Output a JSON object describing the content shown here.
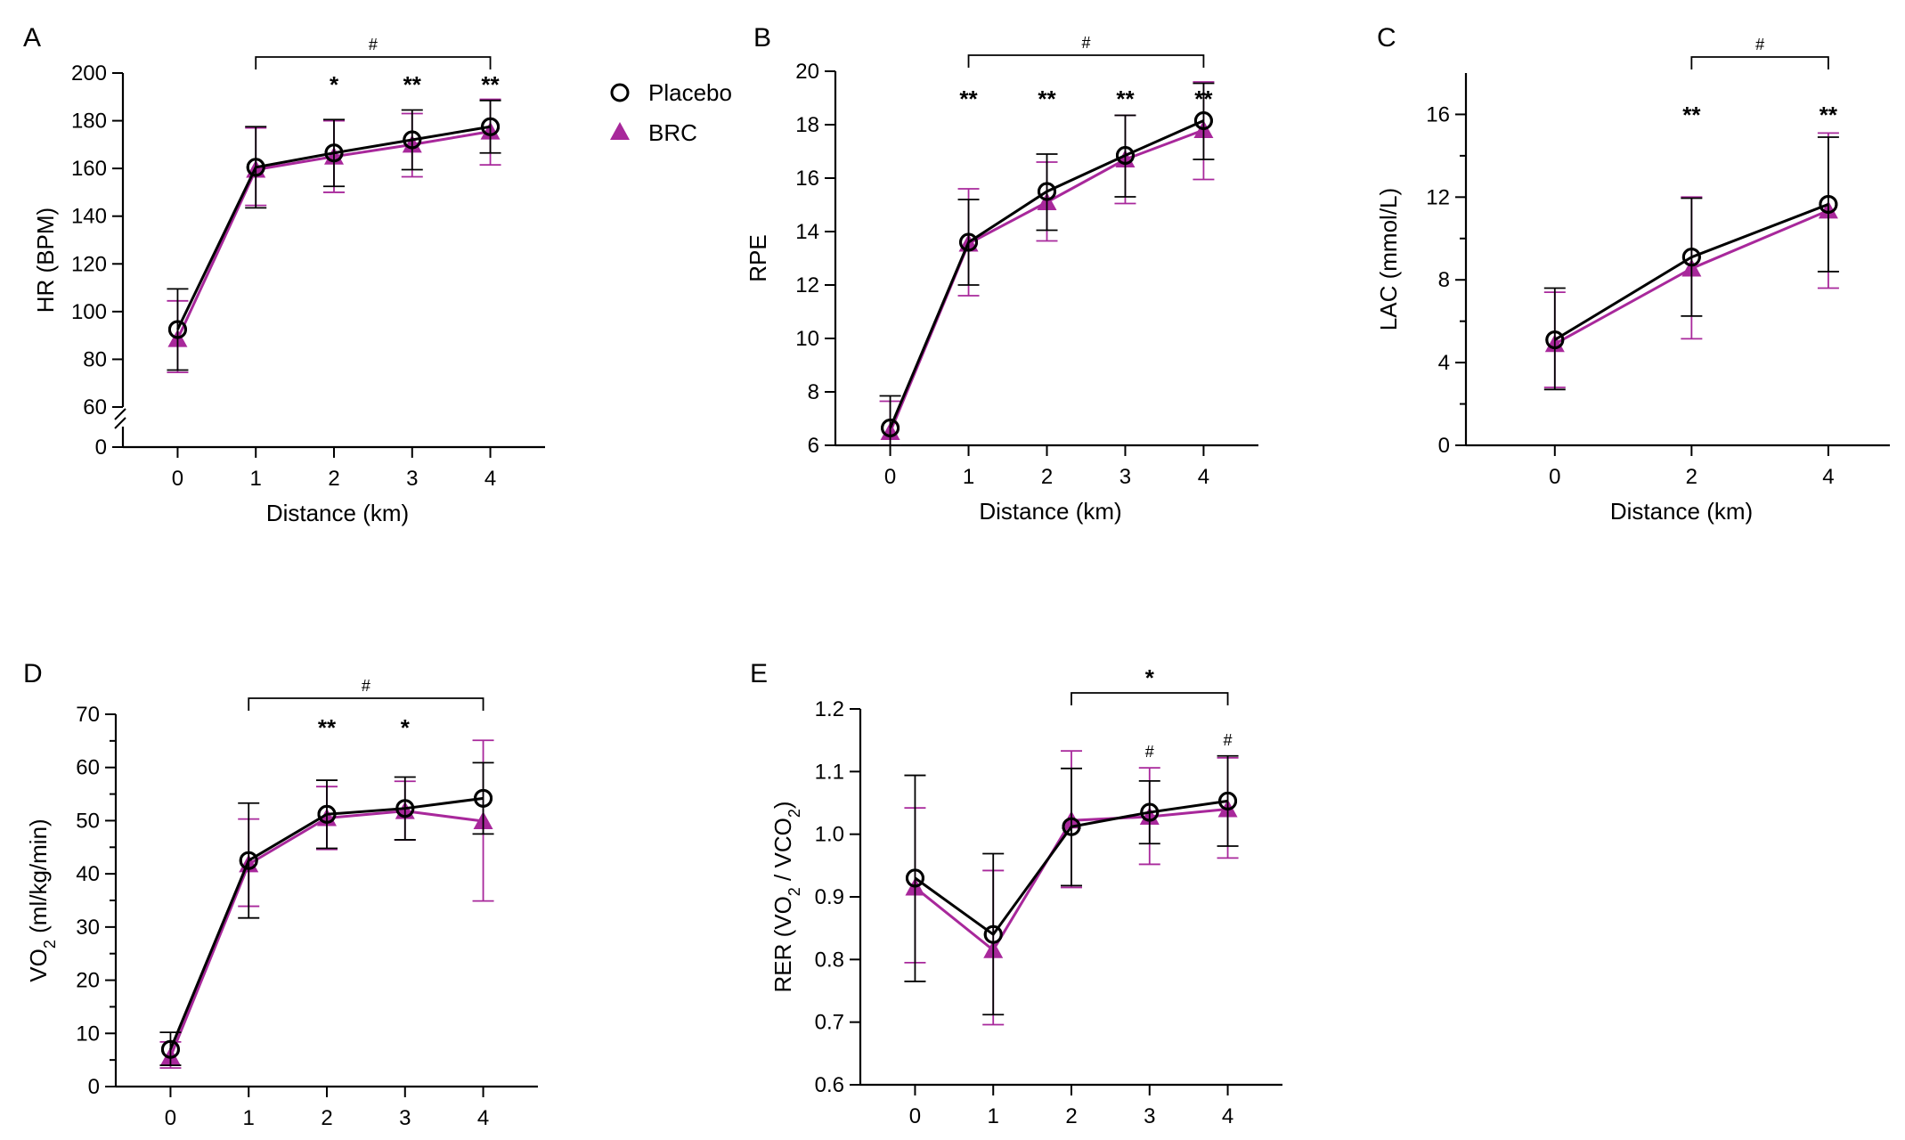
{
  "legend": {
    "placebo": "Placebo",
    "brc": "BRC"
  },
  "colors": {
    "placebo": "#000000",
    "brc": "#a8289b",
    "axis": "#000000"
  },
  "chart_data": [
    {
      "id": "A",
      "type": "line",
      "panel_label": "A",
      "ylabel": "HR (BPM)",
      "xlabel": "Distance (km)",
      "x": [
        0,
        1,
        2,
        3,
        4
      ],
      "x_tick_labels": [
        "0",
        "1",
        "2",
        "3",
        "4"
      ],
      "xlim": [
        -0.7,
        4.7
      ],
      "ylim": [
        60,
        200
      ],
      "y_ticks": [
        60,
        80,
        100,
        120,
        140,
        160,
        180,
        200
      ],
      "y_break": {
        "value": 0,
        "label": "0"
      },
      "series": [
        {
          "name": "Placebo",
          "values": [
            92.5,
            160.5,
            166.5,
            172,
            177.5
          ],
          "err_upper": [
            109.5,
            177.5,
            180.5,
            184.5,
            188.5
          ],
          "err_lower": [
            75.5,
            143.5,
            152.5,
            159.5,
            166.5
          ]
        },
        {
          "name": "BRC",
          "values": [
            88.5,
            159.5,
            165,
            170,
            175.5
          ],
          "err_upper": [
            104.5,
            177,
            180,
            183,
            189
          ],
          "err_lower": [
            74.5,
            144.5,
            150,
            156.5,
            161.5
          ]
        }
      ],
      "annotations": [
        {
          "x": 2,
          "text": "*"
        },
        {
          "x": 3,
          "text": "**"
        },
        {
          "x": 4,
          "text": "**"
        }
      ],
      "bracket": {
        "x1": 1,
        "x2": 4,
        "text": "#"
      }
    },
    {
      "id": "B",
      "type": "line",
      "panel_label": "B",
      "ylabel": "RPE",
      "xlabel": "Distance (km)",
      "x": [
        0,
        1,
        2,
        3,
        4
      ],
      "x_tick_labels": [
        "0",
        "1",
        "2",
        "3",
        "4"
      ],
      "xlim": [
        -0.7,
        4.7
      ],
      "ylim": [
        6,
        20
      ],
      "y_ticks": [
        6,
        8,
        10,
        12,
        14,
        16,
        18,
        20
      ],
      "series": [
        {
          "name": "Placebo",
          "values": [
            6.65,
            13.6,
            15.5,
            16.85,
            18.15
          ],
          "err_upper": [
            7.85,
            15.2,
            16.9,
            18.35,
            19.55
          ],
          "err_lower": [
            6.0,
            12.0,
            14.05,
            15.3,
            16.7
          ]
        },
        {
          "name": "BRC",
          "values": [
            6.5,
            13.55,
            15.1,
            16.7,
            17.8
          ],
          "err_upper": [
            7.65,
            15.6,
            16.6,
            18.35,
            19.6
          ],
          "err_lower": [
            6.0,
            11.6,
            13.65,
            15.05,
            15.95
          ]
        }
      ],
      "annotations": [
        {
          "x": 1,
          "text": "**"
        },
        {
          "x": 2,
          "text": "**"
        },
        {
          "x": 3,
          "text": "**"
        },
        {
          "x": 4,
          "text": "**"
        }
      ],
      "bracket": {
        "x1": 1,
        "x2": 4,
        "text": "#"
      }
    },
    {
      "id": "C",
      "type": "line",
      "panel_label": "C",
      "ylabel": "LAC (mmol/L)",
      "xlabel": "Distance (km)",
      "x": [
        0,
        2,
        4
      ],
      "x_tick_labels": [
        "0",
        "2",
        "4"
      ],
      "xlim": [
        -1.3,
        4.9
      ],
      "ylim": [
        0,
        18
      ],
      "y_ticks": [
        0,
        4,
        8,
        12,
        16
      ],
      "series": [
        {
          "name": "Placebo",
          "values": [
            5.1,
            9.1,
            11.65
          ],
          "err_upper": [
            7.6,
            11.95,
            14.9
          ],
          "err_lower": [
            2.7,
            6.25,
            8.4
          ]
        },
        {
          "name": "BRC",
          "values": [
            4.9,
            8.55,
            11.35
          ],
          "err_upper": [
            7.4,
            12.0,
            15.1
          ],
          "err_lower": [
            2.8,
            5.15,
            7.6
          ]
        }
      ],
      "annotations": [
        {
          "x": 2,
          "text": "**"
        },
        {
          "x": 4,
          "text": "**"
        }
      ],
      "bracket": {
        "x1": 2,
        "x2": 4,
        "text": "#"
      }
    },
    {
      "id": "D",
      "type": "line",
      "panel_label": "D",
      "ylabel": "VO",
      "ylabel_sub": "2",
      "ylabel_rest": " (ml/kg/min)",
      "xlabel": "",
      "x": [
        0,
        1,
        2,
        3,
        4
      ],
      "x_tick_labels": [
        "0",
        "1",
        "2",
        "3",
        "4"
      ],
      "xlim": [
        -0.7,
        4.7
      ],
      "ylim": [
        0,
        70
      ],
      "y_ticks": [
        0,
        10,
        20,
        30,
        40,
        50,
        60,
        70
      ],
      "series": [
        {
          "name": "Placebo",
          "values": [
            7,
            42.5,
            51.2,
            52.3,
            54.2
          ],
          "err_upper": [
            10.2,
            53.3,
            57.6,
            58.2,
            60.9
          ],
          "err_lower": [
            4,
            31.7,
            44.8,
            46.4,
            47.5
          ]
        },
        {
          "name": "BRC",
          "values": [
            5.6,
            41.8,
            50.5,
            51.8,
            49.9
          ],
          "err_upper": [
            8.4,
            50.3,
            56.4,
            57.4,
            65.1
          ],
          "err_lower": [
            3.5,
            33.9,
            44.6,
            46.4,
            34.9
          ]
        }
      ],
      "annotations": [
        {
          "x": 2,
          "text": "**"
        },
        {
          "x": 3,
          "text": "*"
        }
      ],
      "bracket": {
        "x1": 1,
        "x2": 4,
        "text": "#"
      }
    },
    {
      "id": "E",
      "type": "line",
      "panel_label": "E",
      "ylabel": "RER (VO",
      "ylabel_sub": "2",
      "ylabel_mid": " / VCO",
      "ylabel_sub2": "2",
      "ylabel_rest": ")",
      "xlabel": "",
      "x": [
        0,
        1,
        2,
        3,
        4
      ],
      "x_tick_labels": [
        "0",
        "1",
        "2",
        "3",
        "4"
      ],
      "xlim": [
        -0.7,
        4.7
      ],
      "ylim": [
        0.6,
        1.2
      ],
      "y_ticks": [
        0.6,
        0.7,
        0.8,
        0.9,
        1.0,
        1.1,
        1.2
      ],
      "y_tick_labels": [
        "0.6",
        "0.7",
        "0.8",
        "0.9",
        "1.0",
        "1.1",
        "1.2"
      ],
      "series": [
        {
          "name": "Placebo",
          "values": [
            0.93,
            0.84,
            1.012,
            1.035,
            1.053
          ],
          "err_upper": [
            1.094,
            0.969,
            1.105,
            1.085,
            1.125
          ],
          "err_lower": [
            0.765,
            0.712,
            0.918,
            0.985,
            0.981
          ]
        },
        {
          "name": "BRC",
          "values": [
            0.915,
            0.815,
            1.022,
            1.028,
            1.04
          ],
          "err_upper": [
            1.042,
            0.942,
            1.133,
            1.106,
            1.122
          ],
          "err_lower": [
            0.795,
            0.696,
            0.915,
            0.952,
            0.962
          ]
        }
      ],
      "annotations": [
        {
          "x": 3,
          "text": "#",
          "small": true
        },
        {
          "x": 4,
          "text": "#",
          "small": true
        }
      ],
      "bracket": {
        "x1": 2,
        "x2": 4,
        "text": "*"
      }
    }
  ]
}
